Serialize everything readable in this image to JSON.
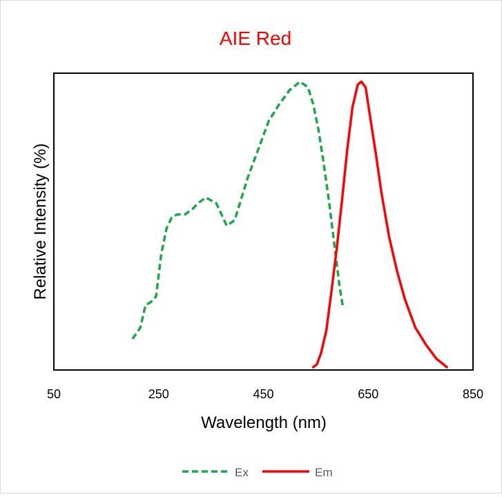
{
  "chart_data": {
    "type": "line",
    "title": "AIE Red",
    "title_color": "#ff0000",
    "xlabel": "Wavelength (nm)",
    "ylabel": "Relative Intensity (%)",
    "xlim": [
      50,
      850
    ],
    "ylim": [
      0,
      105
    ],
    "xticks": [
      50,
      250,
      450,
      650,
      850
    ],
    "yticks": [],
    "grid": false,
    "legend_position": "bottom",
    "series": [
      {
        "name": "Ex",
        "color": "#1aa84b",
        "dash": "dashed",
        "x": [
          200,
          215,
          225,
          235,
          245,
          255,
          265,
          275,
          285,
          300,
          315,
          325,
          340,
          350,
          360,
          370,
          380,
          395,
          405,
          420,
          440,
          460,
          480,
          500,
          520,
          535,
          545,
          555,
          565,
          575,
          585,
          595,
          602
        ],
        "y": [
          11,
          15,
          23,
          24,
          26,
          41,
          50,
          54,
          55,
          55,
          57,
          59,
          61,
          60,
          59,
          55,
          51,
          53,
          59,
          68,
          78,
          88,
          94,
          99,
          102,
          100,
          94,
          85,
          73,
          60,
          45,
          30,
          22
        ]
      },
      {
        "name": "Em",
        "color": "#ff0000",
        "dash": "solid",
        "x": [
          545,
          552,
          560,
          570,
          580,
          590,
          600,
          610,
          620,
          630,
          637,
          645,
          655,
          665,
          675,
          690,
          705,
          720,
          740,
          760,
          780,
          800
        ],
        "y": [
          1,
          2,
          6,
          14,
          28,
          43,
          60,
          78,
          93,
          101,
          102,
          100,
          88,
          76,
          63,
          47,
          35,
          25,
          15,
          9,
          4,
          1
        ]
      }
    ]
  }
}
